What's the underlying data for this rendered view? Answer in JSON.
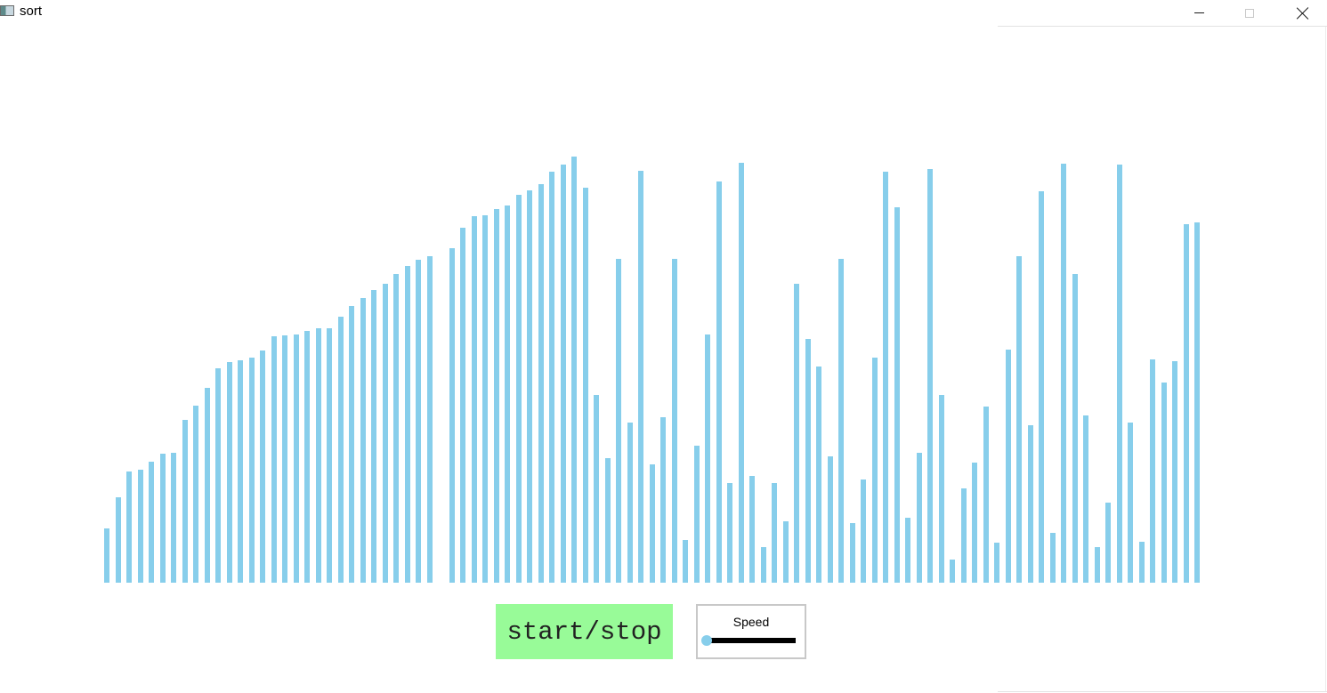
{
  "window": {
    "title": "sort",
    "app_icon": "window-app-icon",
    "controls": {
      "minimize_icon": "minimize-icon",
      "maximize_icon": "maximize-icon",
      "close_icon": "close-icon"
    }
  },
  "visualizer": {
    "bar_color": "#87ceeb",
    "values": [
      61,
      96,
      125,
      127,
      136,
      145,
      146,
      183,
      199,
      219,
      241,
      248,
      250,
      253,
      261,
      277,
      278,
      279,
      283,
      286,
      286,
      299,
      311,
      320,
      329,
      336,
      347,
      356,
      363,
      367,
      0,
      376,
      399,
      412,
      413,
      420,
      424,
      436,
      441,
      448,
      462,
      470,
      479,
      444,
      211,
      140,
      364,
      180,
      463,
      133,
      186,
      364,
      48,
      154,
      279,
      451,
      112,
      472,
      120,
      40,
      112,
      69,
      336,
      274,
      243,
      142,
      364,
      67,
      116,
      253,
      462,
      422,
      73,
      146,
      465,
      211,
      26,
      106,
      135,
      198,
      45,
      262,
      367,
      177,
      440,
      56,
      471,
      347,
      188,
      40,
      90,
      470,
      180,
      46,
      251,
      225,
      249,
      403,
      405
    ],
    "max_value": 490
  },
  "controls": {
    "start_stop_label": "start/stop",
    "start_stop_color": "#98fb98",
    "speed": {
      "label": "Speed",
      "value": 0,
      "thumb_color": "#87ceeb"
    }
  }
}
